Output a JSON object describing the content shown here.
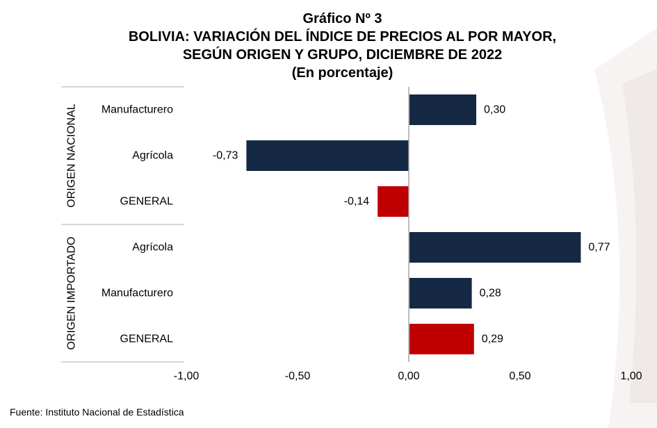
{
  "titles": {
    "line1": "Gráfico Nº 3",
    "line2": "BOLIVIA: VARIACIÓN DEL ÍNDICE DE PRECIOS AL POR MAYOR,",
    "line3": "SEGÚN ORIGEN Y GRUPO, DICIEMBRE DE 2022",
    "line4": "(En porcentaje)"
  },
  "source": "Fuente: Instituto Nacional de Estadística",
  "colors": {
    "bar": "#152844",
    "general": "#c00000",
    "grid": "#c8c8c8",
    "axis": "#a6a6a6"
  },
  "chart_data": {
    "type": "bar",
    "orientation": "horizontal",
    "xlim": [
      -1.0,
      1.0
    ],
    "xticks": [
      "-1,00",
      "-0,50",
      "0,00",
      "0,50",
      "1,00"
    ],
    "xtick_values": [
      -1.0,
      -0.5,
      0.0,
      0.5,
      1.0
    ],
    "groups": [
      {
        "name": "ORIGEN NACIONAL",
        "items": [
          {
            "label": "Manufacturero",
            "value": 0.3,
            "display": "0,30",
            "highlight": false
          },
          {
            "label": "Agrícola",
            "value": -0.73,
            "display": "-0,73",
            "highlight": false
          },
          {
            "label": "GENERAL",
            "value": -0.14,
            "display": "-0,14",
            "highlight": true
          }
        ]
      },
      {
        "name": "ORIGEN IMPORTADO",
        "items": [
          {
            "label": "Agrícola",
            "value": 0.77,
            "display": "0,77",
            "highlight": false
          },
          {
            "label": "Manufacturero",
            "value": 0.28,
            "display": "0,28",
            "highlight": false
          },
          {
            "label": "GENERAL",
            "value": 0.29,
            "display": "0,29",
            "highlight": true
          }
        ]
      }
    ]
  }
}
